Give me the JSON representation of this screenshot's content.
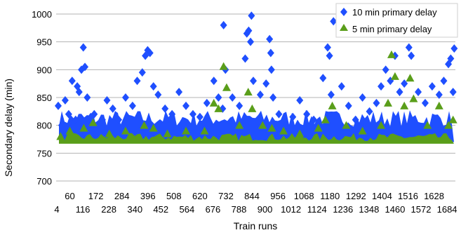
{
  "chart_data": {
    "type": "scatter",
    "title": "",
    "xlabel": "Train runs",
    "ylabel": "Secondary delay (min)",
    "xlim": [
      1,
      1720
    ],
    "ylim": [
      700,
      1000
    ],
    "yticks": [
      700,
      750,
      800,
      850,
      900,
      950,
      1000
    ],
    "xticks_row1": [
      "60",
      "172",
      "284",
      "396",
      "508",
      "620",
      "732",
      "844",
      "956",
      "1068",
      "1180",
      "1292",
      "1404",
      "1516",
      "1628"
    ],
    "xticks_row2": [
      "4",
      "116",
      "228",
      "340",
      "452",
      "564",
      "676",
      "788",
      "900",
      "1012",
      "1124",
      "1236",
      "1348",
      "1460",
      "1572",
      "1684"
    ],
    "grid": "horizontal",
    "legend_position": "top-right",
    "series": [
      {
        "name": "10 min primary delay",
        "marker": "diamond",
        "color": "#1f4fff",
        "x": [
          10,
          25,
          40,
          55,
          70,
          85,
          92,
          100,
          110,
          118,
          125,
          135,
          150,
          165,
          180,
          200,
          220,
          245,
          270,
          300,
          330,
          350,
          372,
          385,
          395,
          405,
          420,
          440,
          470,
          500,
          530,
          560,
          590,
          620,
          650,
          680,
          700,
          718,
          722,
          730,
          760,
          790,
          815,
          822,
          830,
          838,
          842,
          850,
          880,
          905,
          920,
          925,
          928,
          935,
          960,
          990,
          1020,
          1050,
          1080,
          1110,
          1150,
          1170,
          1178,
          1185,
          1195,
          1230,
          1260,
          1290,
          1320,
          1350,
          1380,
          1400,
          1420,
          1440,
          1460,
          1480,
          1500,
          1520,
          1530,
          1560,
          1590,
          1620,
          1650,
          1670,
          1690,
          1700,
          1710,
          1715
        ],
        "y": [
          835,
          800,
          845,
          820,
          880,
          810,
          870,
          860,
          900,
          940,
          905,
          850,
          815,
          820,
          800,
          810,
          845,
          830,
          810,
          850,
          835,
          880,
          895,
          925,
          935,
          930,
          870,
          855,
          830,
          820,
          860,
          835,
          820,
          815,
          840,
          880,
          850,
          830,
          980,
          900,
          850,
          835,
          920,
          965,
          970,
          950,
          997,
          880,
          855,
          875,
          955,
          930,
          900,
          850,
          820,
          800,
          815,
          845,
          820,
          810,
          885,
          940,
          925,
          855,
          987,
          870,
          835,
          810,
          850,
          825,
          840,
          870,
          900,
          880,
          925,
          860,
          875,
          940,
          925,
          860,
          840,
          870,
          855,
          880,
          910,
          920,
          860,
          938
        ]
      },
      {
        "name": "5 min primary delay",
        "marker": "triangle",
        "color": "#5a9e1a",
        "x": [
          20,
          60,
          120,
          160,
          230,
          300,
          380,
          420,
          480,
          560,
          640,
          680,
          700,
          722,
          735,
          790,
          828,
          845,
          890,
          930,
          980,
          1050,
          1130,
          1160,
          1190,
          1250,
          1320,
          1400,
          1430,
          1445,
          1460,
          1500,
          1525,
          1540,
          1600,
          1650,
          1690,
          1710
        ],
        "y": [
          780,
          790,
          795,
          805,
          785,
          790,
          800,
          795,
          785,
          790,
          790,
          840,
          830,
          906,
          868,
          800,
          860,
          830,
          800,
          795,
          790,
          785,
          795,
          810,
          835,
          800,
          790,
          800,
          840,
          927,
          888,
          835,
          885,
          848,
          800,
          835,
          800,
          810
        ]
      }
    ]
  }
}
